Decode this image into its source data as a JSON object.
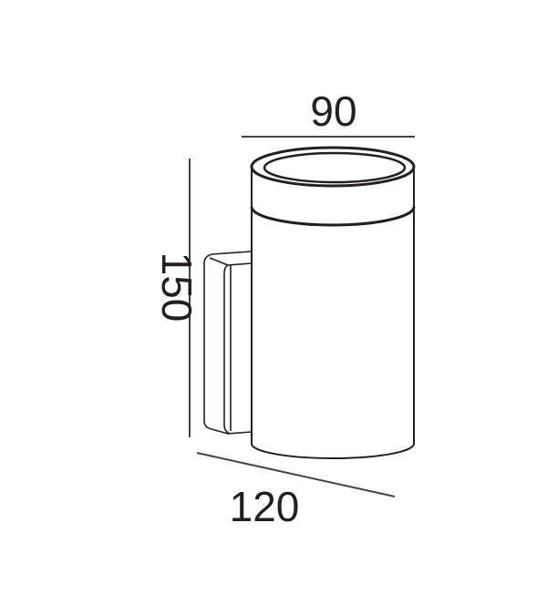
{
  "dimensions": {
    "width": "90",
    "height": "150",
    "depth": "120"
  },
  "colors": {
    "line": "#231f20",
    "dimension_line": "#4a3f3c"
  }
}
